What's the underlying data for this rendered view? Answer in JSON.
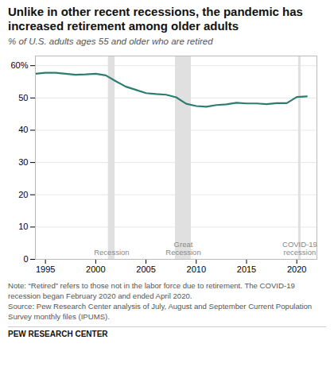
{
  "chart_data": {
    "type": "line",
    "title": "Unlike in other recent recessions, the pandemic has\nincreased retirement among older adults",
    "subtitle": "% of U.S. adults ages 55 and older who are retired",
    "notes": [
      "Note: “Retired” refers to those not in the labor force due to retirement. The COVID-19",
      "recession began February 2020 and ended April 2020.",
      "Source: Pew Research Center analysis of July, August and September Current Population",
      "Survey monthly files (IPUMS)."
    ],
    "source": "PEW RESEARCH CENTER",
    "x": [
      1994,
      1995,
      1996,
      1997,
      1998,
      1999,
      2000,
      2001,
      2002,
      2003,
      2004,
      2005,
      2006,
      2007,
      2008,
      2009,
      2010,
      2011,
      2012,
      2013,
      2014,
      2015,
      2016,
      2017,
      2018,
      2019,
      2020,
      2021
    ],
    "values": [
      57.5,
      57.8,
      57.8,
      57.5,
      57.2,
      57.3,
      57.5,
      57.0,
      55.2,
      53.5,
      52.5,
      51.5,
      51.2,
      51.0,
      50.2,
      48.2,
      47.5,
      47.3,
      47.8,
      48.0,
      48.5,
      48.3,
      48.3,
      48.1,
      48.4,
      48.4,
      50.3,
      50.5
    ],
    "color": "#2d7d6f",
    "recessions": [
      {
        "start": 2001.25,
        "end": 2001.92,
        "label": "Recession"
      },
      {
        "start": 2007.92,
        "end": 2009.5,
        "label": "Great\nRecession"
      },
      {
        "start": 2020.17,
        "end": 2020.42,
        "label": "COVID-19\nrecession"
      }
    ],
    "recession_color": "#e0e0e0",
    "xlim": [
      1994,
      2022
    ],
    "xticks": [
      1995,
      2000,
      2005,
      2010,
      2015,
      2020
    ],
    "ylim": [
      0,
      63
    ],
    "yticks": [
      0,
      10,
      20,
      30,
      40,
      50,
      {
        "value": 60,
        "label": "60%"
      }
    ],
    "grid": true
  }
}
